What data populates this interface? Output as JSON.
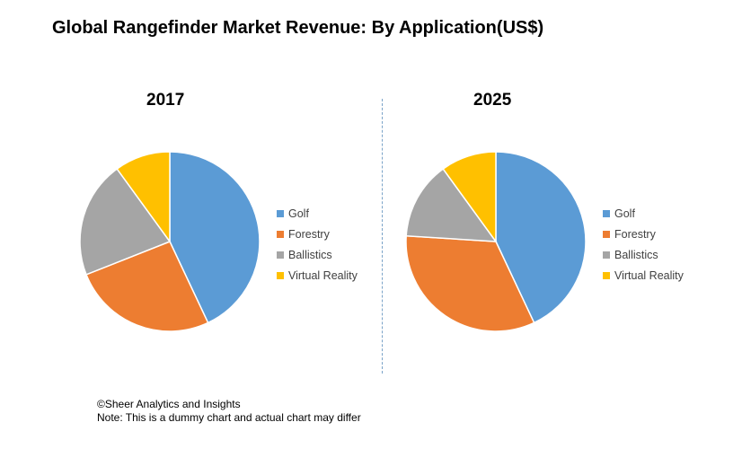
{
  "title": "Global Rangefinder Market Revenue: By Application(US$)",
  "colors": {
    "Golf": "#5B9BD5",
    "Forestry": "#ED7D31",
    "Ballistics": "#A5A5A5",
    "Virtual Reality": "#FFC000"
  },
  "footer": {
    "copyright": "©Sheer Analytics and Insights",
    "note": "Note: This is a dummy chart and actual chart may differ"
  },
  "chart_data": [
    {
      "type": "pie",
      "title": "2017",
      "labels": [
        "Golf",
        "Forestry",
        "Ballistics",
        "Virtual Reality"
      ],
      "values": [
        43,
        26,
        21,
        10
      ],
      "legend": "right"
    },
    {
      "type": "pie",
      "title": "2025",
      "labels": [
        "Golf",
        "Forestry",
        "Ballistics",
        "Virtual Reality"
      ],
      "values": [
        43,
        33,
        14,
        10
      ],
      "legend": "right"
    }
  ]
}
